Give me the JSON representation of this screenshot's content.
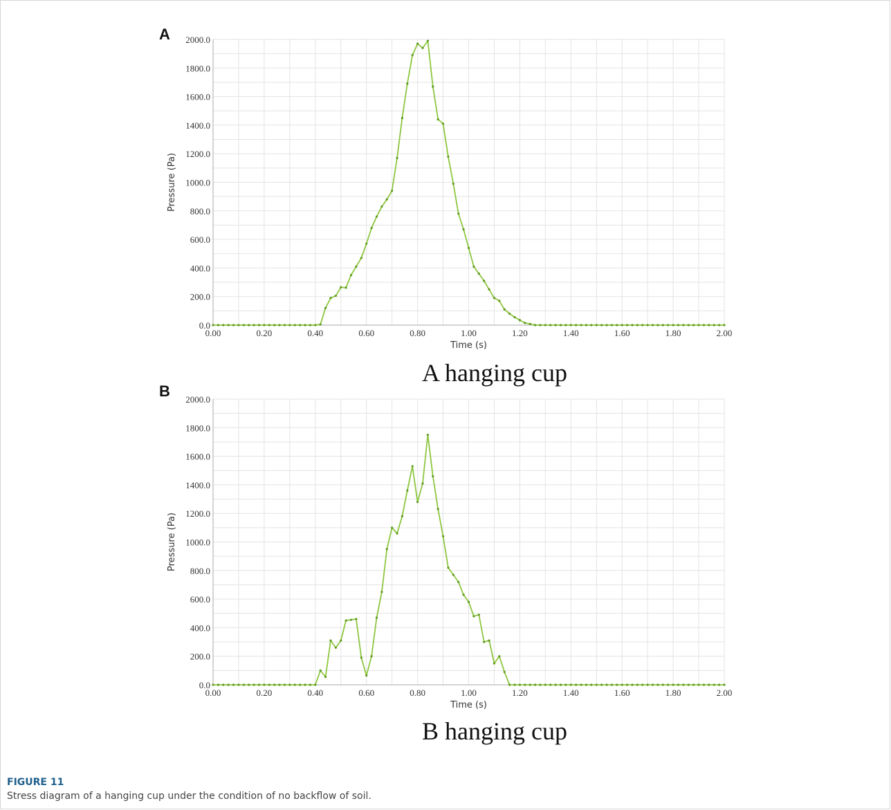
{
  "panels": [
    {
      "letter": "A",
      "subcaption": "A hanging cup"
    },
    {
      "letter": "B",
      "subcaption": "B hanging cup"
    }
  ],
  "figure": {
    "label": "FIGURE 11",
    "caption": "Stress diagram of a hanging cup under the condition of no backflow of soil."
  },
  "colors": {
    "series": "#8dc63f",
    "grid": "#e3e3e3",
    "axis": "#aaaaaa"
  },
  "chart_data": [
    {
      "type": "line",
      "panel": "A",
      "xlabel": "Time (s)",
      "ylabel": "Pressure (Pa)",
      "xlim": [
        0,
        2
      ],
      "ylim": [
        0,
        2000
      ],
      "xticks": [
        "0.00",
        "0.20",
        "0.40",
        "0.60",
        "0.80",
        "1.00",
        "1.20",
        "1.40",
        "1.60",
        "1.80",
        "2.00"
      ],
      "yticks": [
        "0.0",
        "200.0",
        "400.0",
        "600.0",
        "800.0",
        "1000.0",
        "1200.0",
        "1400.0",
        "1600.0",
        "1800.0",
        "2000.0"
      ],
      "grid": true,
      "x": [
        0,
        0.02,
        0.04,
        0.06,
        0.08,
        0.1,
        0.12,
        0.14,
        0.16,
        0.18,
        0.2,
        0.22,
        0.24,
        0.26,
        0.28,
        0.3,
        0.32,
        0.34,
        0.36,
        0.38,
        0.4,
        0.42,
        0.44,
        0.46,
        0.48,
        0.5,
        0.52,
        0.54,
        0.56,
        0.58,
        0.6,
        0.62,
        0.64,
        0.66,
        0.68,
        0.7,
        0.72,
        0.74,
        0.76,
        0.78,
        0.8,
        0.82,
        0.84,
        0.86,
        0.88,
        0.9,
        0.92,
        0.94,
        0.96,
        0.98,
        1.0,
        1.02,
        1.04,
        1.06,
        1.08,
        1.1,
        1.12,
        1.14,
        1.16,
        1.18,
        1.2,
        1.22,
        1.24,
        1.26,
        1.28,
        1.3,
        1.32,
        1.34,
        1.36,
        1.38,
        1.4,
        1.42,
        1.44,
        1.46,
        1.48,
        1.5,
        1.52,
        1.54,
        1.56,
        1.58,
        1.6,
        1.62,
        1.64,
        1.66,
        1.68,
        1.7,
        1.72,
        1.74,
        1.76,
        1.78,
        1.8,
        1.82,
        1.84,
        1.86,
        1.88,
        1.9,
        1.92,
        1.94,
        1.96,
        1.98,
        2.0
      ],
      "y": [
        0,
        0,
        0,
        0,
        0,
        0,
        0,
        0,
        0,
        0,
        0,
        0,
        0,
        0,
        0,
        0,
        0,
        0,
        0,
        0,
        0,
        5,
        120,
        190,
        205,
        265,
        262,
        350,
        410,
        470,
        570,
        680,
        760,
        830,
        880,
        940,
        1170,
        1450,
        1690,
        1890,
        1970,
        1940,
        1990,
        1670,
        1440,
        1410,
        1180,
        990,
        780,
        670,
        540,
        410,
        360,
        310,
        250,
        190,
        170,
        110,
        80,
        55,
        35,
        15,
        8,
        0,
        0,
        0,
        0,
        0,
        0,
        0,
        0,
        0,
        0,
        0,
        0,
        0,
        0,
        0,
        0,
        0,
        0,
        0,
        0,
        0,
        0,
        0,
        0,
        0,
        0,
        0,
        0,
        0,
        0,
        0,
        0,
        0,
        0,
        0,
        0,
        0,
        0
      ]
    },
    {
      "type": "line",
      "panel": "B",
      "xlabel": "Time (s)",
      "ylabel": "Pressure (Pa)",
      "xlim": [
        0,
        2
      ],
      "ylim": [
        0,
        2000
      ],
      "xticks": [
        "0.00",
        "0.20",
        "0.40",
        "0.60",
        "0.80",
        "1.00",
        "1.20",
        "1.40",
        "1.60",
        "1.80",
        "2.00"
      ],
      "yticks": [
        "0.0",
        "200.0",
        "400.0",
        "600.0",
        "800.0",
        "1000.0",
        "1200.0",
        "1400.0",
        "1600.0",
        "1800.0",
        "2000.0"
      ],
      "grid": true,
      "x": [
        0,
        0.02,
        0.04,
        0.06,
        0.08,
        0.1,
        0.12,
        0.14,
        0.16,
        0.18,
        0.2,
        0.22,
        0.24,
        0.26,
        0.28,
        0.3,
        0.32,
        0.34,
        0.36,
        0.38,
        0.4,
        0.42,
        0.44,
        0.46,
        0.48,
        0.5,
        0.52,
        0.54,
        0.56,
        0.58,
        0.6,
        0.62,
        0.64,
        0.66,
        0.68,
        0.7,
        0.72,
        0.74,
        0.76,
        0.78,
        0.8,
        0.82,
        0.84,
        0.86,
        0.88,
        0.9,
        0.92,
        0.94,
        0.96,
        0.98,
        1.0,
        1.02,
        1.04,
        1.06,
        1.08,
        1.1,
        1.12,
        1.14,
        1.16,
        1.18,
        1.2,
        1.22,
        1.24,
        1.26,
        1.28,
        1.3,
        1.32,
        1.34,
        1.36,
        1.38,
        1.4,
        1.42,
        1.44,
        1.46,
        1.48,
        1.5,
        1.52,
        1.54,
        1.56,
        1.58,
        1.6,
        1.62,
        1.64,
        1.66,
        1.68,
        1.7,
        1.72,
        1.74,
        1.76,
        1.78,
        1.8,
        1.82,
        1.84,
        1.86,
        1.88,
        1.9,
        1.92,
        1.94,
        1.96,
        1.98,
        2.0
      ],
      "y": [
        0,
        0,
        0,
        0,
        0,
        0,
        0,
        0,
        0,
        0,
        0,
        0,
        0,
        0,
        0,
        0,
        0,
        0,
        0,
        0,
        0,
        100,
        55,
        310,
        260,
        310,
        450,
        455,
        460,
        190,
        65,
        200,
        470,
        650,
        950,
        1100,
        1060,
        1180,
        1360,
        1530,
        1280,
        1410,
        1750,
        1460,
        1230,
        1040,
        820,
        770,
        720,
        630,
        580,
        480,
        490,
        300,
        310,
        150,
        200,
        90,
        0,
        0,
        0,
        0,
        0,
        0,
        0,
        0,
        0,
        0,
        0,
        0,
        0,
        0,
        0,
        0,
        0,
        0,
        0,
        0,
        0,
        0,
        0,
        0,
        0,
        0,
        0,
        0,
        0,
        0,
        0,
        0,
        0,
        0,
        0,
        0,
        0,
        0,
        0,
        0,
        0,
        0,
        0
      ]
    }
  ]
}
